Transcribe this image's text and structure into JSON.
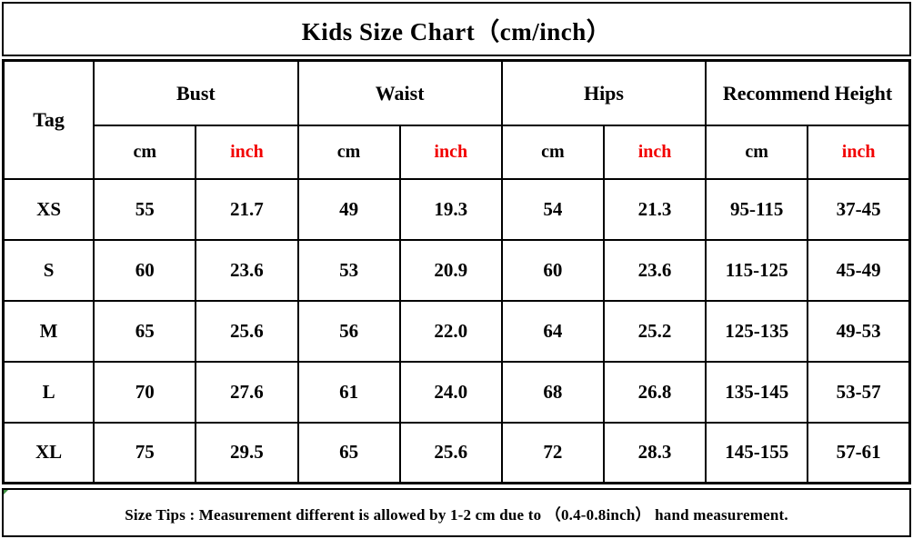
{
  "title": "Kids Size Chart（cm/inch）",
  "footer": {
    "text": "Size Tips : Measurement different is allowed by 1-2 cm due to （0.4-0.8inch） hand measurement."
  },
  "colors": {
    "text": "#000000",
    "border": "#000000",
    "background": "#ffffff",
    "inch_accent_red": "#f20000"
  },
  "chart_data": {
    "type": "table",
    "title": "Kids Size Chart（cm/inch）",
    "column_groups": [
      {
        "label": "Tag"
      },
      {
        "label": "Bust"
      },
      {
        "label": "Waist"
      },
      {
        "label": "Hips"
      },
      {
        "label": "Recommend Height"
      }
    ],
    "units": {
      "cm": "cm",
      "inch": "inch"
    },
    "rows": [
      {
        "tag": "XS",
        "bust_cm": "55",
        "bust_inch": "21.7",
        "waist_cm": "49",
        "waist_inch": "19.3",
        "hips_cm": "54",
        "hips_inch": "21.3",
        "height_cm": "95-115",
        "height_inch": "37-45"
      },
      {
        "tag": "S",
        "bust_cm": "60",
        "bust_inch": "23.6",
        "waist_cm": "53",
        "waist_inch": "20.9",
        "hips_cm": "60",
        "hips_inch": "23.6",
        "height_cm": "115-125",
        "height_inch": "45-49"
      },
      {
        "tag": "M",
        "bust_cm": "65",
        "bust_inch": "25.6",
        "waist_cm": "56",
        "waist_inch": "22.0",
        "hips_cm": "64",
        "hips_inch": "25.2",
        "height_cm": "125-135",
        "height_inch": "49-53"
      },
      {
        "tag": "L",
        "bust_cm": "70",
        "bust_inch": "27.6",
        "waist_cm": "61",
        "waist_inch": "24.0",
        "hips_cm": "68",
        "hips_inch": "26.8",
        "height_cm": "135-145",
        "height_inch": "53-57"
      },
      {
        "tag": "XL",
        "bust_cm": "75",
        "bust_inch": "29.5",
        "waist_cm": "65",
        "waist_inch": "25.6",
        "hips_cm": "72",
        "hips_inch": "28.3",
        "height_cm": "145-155",
        "height_inch": "57-61"
      }
    ]
  }
}
